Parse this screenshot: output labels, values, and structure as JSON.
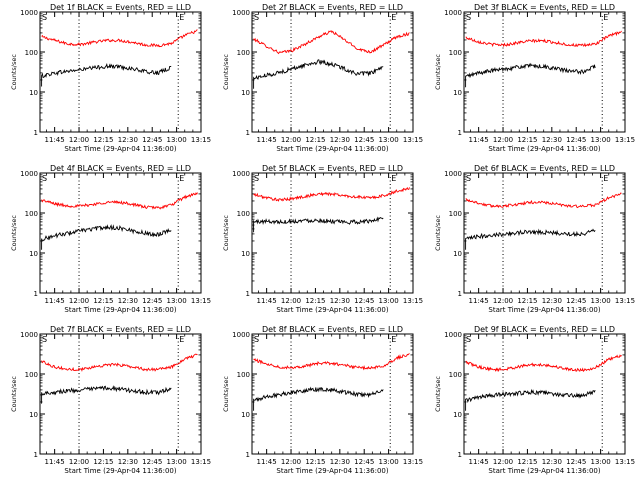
{
  "chart_data": [
    {
      "type": "line",
      "title": "Det 1f BLACK = Events, RED = LLD",
      "ylabel": "Counts/sec",
      "xlabel": "Start Time (29-Apr-04 11:36:00)",
      "marker_left": "S",
      "marker_right": "E",
      "x_ticks": [
        "11:45",
        "12:00",
        "12:15",
        "12:30",
        "12:45",
        "13:00",
        "13:15"
      ],
      "y_ticks": [
        "1",
        "10",
        "100",
        "1000"
      ],
      "ylim": [
        1,
        1000
      ],
      "series": [
        {
          "color": "#ff0000",
          "x_minutes": [
            0,
            8,
            16,
            24,
            32,
            40,
            48,
            56,
            64,
            72,
            80,
            88,
            96
          ],
          "values": [
            240,
            195,
            160,
            155,
            175,
            195,
            195,
            175,
            150,
            145,
            165,
            260,
            340
          ]
        },
        {
          "color": "#000000",
          "x_minutes": [
            0,
            8,
            16,
            24,
            32,
            40,
            48,
            56,
            64,
            72,
            80
          ],
          "values": [
            25,
            30,
            33,
            36,
            40,
            44,
            43,
            38,
            32,
            30,
            42
          ]
        }
      ]
    },
    {
      "type": "line",
      "title": "Det 2f BLACK = Events, RED = LLD",
      "ylabel": "Counts/sec",
      "xlabel": "Start Time (29-Apr-04 11:36:00)",
      "marker_left": "S",
      "marker_right": "E",
      "x_ticks": [
        "11:45",
        "12:00",
        "12:15",
        "12:30",
        "12:45",
        "13:00",
        "13:15"
      ],
      "y_ticks": [
        "1",
        "10",
        "100",
        "1000"
      ],
      "ylim": [
        1,
        1000
      ],
      "series": [
        {
          "color": "#ff0000",
          "x_minutes": [
            0,
            8,
            16,
            24,
            32,
            40,
            48,
            56,
            64,
            72,
            80,
            88,
            96
          ],
          "values": [
            210,
            140,
            95,
            110,
            160,
            240,
            330,
            200,
            120,
            100,
            150,
            240,
            290
          ]
        },
        {
          "color": "#000000",
          "x_minutes": [
            0,
            8,
            16,
            24,
            32,
            40,
            48,
            56,
            64,
            72,
            80
          ],
          "values": [
            22,
            26,
            31,
            38,
            48,
            57,
            50,
            38,
            28,
            30,
            40
          ]
        }
      ]
    },
    {
      "type": "line",
      "title": "Det 3f BLACK = Events, RED = LLD",
      "ylabel": "Counts/sec",
      "xlabel": "Start Time (29-Apr-04 11:36:00)",
      "marker_left": "S",
      "marker_right": "E",
      "x_ticks": [
        "11:45",
        "12:00",
        "12:15",
        "12:30",
        "12:45",
        "13:00",
        "13:15"
      ],
      "y_ticks": [
        "1",
        "10",
        "100",
        "1000"
      ],
      "ylim": [
        1,
        1000
      ],
      "series": [
        {
          "color": "#ff0000",
          "x_minutes": [
            0,
            8,
            16,
            24,
            32,
            40,
            48,
            56,
            64,
            72,
            80,
            88,
            96
          ],
          "values": [
            230,
            180,
            155,
            150,
            170,
            190,
            190,
            170,
            150,
            145,
            160,
            250,
            320
          ]
        },
        {
          "color": "#000000",
          "x_minutes": [
            0,
            8,
            16,
            24,
            32,
            40,
            48,
            56,
            64,
            72,
            80
          ],
          "values": [
            24,
            30,
            34,
            38,
            42,
            45,
            43,
            38,
            33,
            32,
            45
          ]
        }
      ]
    },
    {
      "type": "line",
      "title": "Det 4f BLACK = Events, RED = LLD",
      "ylabel": "Counts/sec",
      "xlabel": "Start Time (29-Apr-04 11:36:00)",
      "marker_left": "S",
      "marker_right": "E",
      "x_ticks": [
        "11:45",
        "12:00",
        "12:15",
        "12:30",
        "12:45",
        "13:00",
        "13:15"
      ],
      "y_ticks": [
        "1",
        "10",
        "100",
        "1000"
      ],
      "ylim": [
        1,
        1000
      ],
      "series": [
        {
          "color": "#ff0000",
          "x_minutes": [
            0,
            8,
            16,
            24,
            32,
            40,
            48,
            56,
            64,
            72,
            80,
            88,
            96
          ],
          "values": [
            210,
            170,
            150,
            150,
            165,
            185,
            185,
            165,
            140,
            135,
            160,
            250,
            310
          ]
        },
        {
          "color": "#000000",
          "x_minutes": [
            0,
            8,
            16,
            24,
            32,
            40,
            48,
            56,
            64,
            72,
            80
          ],
          "values": [
            22,
            27,
            31,
            36,
            40,
            44,
            42,
            36,
            31,
            29,
            40
          ]
        }
      ]
    },
    {
      "type": "line",
      "title": "Det 5f BLACK = Events, RED = LLD",
      "ylabel": "Counts/sec",
      "xlabel": "Start Time (29-Apr-04 11:36:00)",
      "marker_left": "S",
      "marker_right": "E",
      "x_ticks": [
        "11:45",
        "12:00",
        "12:15",
        "12:30",
        "12:45",
        "13:00",
        "13:15"
      ],
      "y_ticks": [
        "1",
        "10",
        "100",
        "1000"
      ],
      "ylim": [
        1,
        1000
      ],
      "series": [
        {
          "color": "#ff0000",
          "x_minutes": [
            0,
            8,
            16,
            24,
            32,
            40,
            48,
            56,
            64,
            72,
            80,
            88,
            96
          ],
          "values": [
            290,
            240,
            210,
            230,
            260,
            300,
            300,
            270,
            250,
            240,
            270,
            350,
            420
          ]
        },
        {
          "color": "#000000",
          "x_minutes": [
            0,
            8,
            16,
            24,
            32,
            40,
            48,
            56,
            64,
            72,
            80
          ],
          "values": [
            60,
            62,
            60,
            62,
            65,
            66,
            62,
            58,
            60,
            62,
            80
          ]
        }
      ]
    },
    {
      "type": "line",
      "title": "Det 6f BLACK = Events, RED = LLD",
      "ylabel": "Counts/sec",
      "xlabel": "Start Time (29-Apr-04 11:36:00)",
      "marker_left": "S",
      "marker_right": "E",
      "x_ticks": [
        "11:45",
        "12:00",
        "12:15",
        "12:30",
        "12:45",
        "13:00",
        "13:15"
      ],
      "y_ticks": [
        "1",
        "10",
        "100",
        "1000"
      ],
      "ylim": [
        1,
        1000
      ],
      "series": [
        {
          "color": "#ff0000",
          "x_minutes": [
            0,
            8,
            16,
            24,
            32,
            40,
            48,
            56,
            64,
            72,
            80,
            88,
            96
          ],
          "values": [
            220,
            175,
            150,
            150,
            165,
            185,
            185,
            165,
            150,
            145,
            160,
            240,
            300
          ]
        },
        {
          "color": "#000000",
          "x_minutes": [
            0,
            8,
            16,
            24,
            32,
            40,
            48,
            56,
            64,
            72,
            80
          ],
          "values": [
            22,
            26,
            28,
            30,
            32,
            34,
            33,
            31,
            30,
            30,
            38
          ]
        }
      ]
    },
    {
      "type": "line",
      "title": "Det 7f BLACK = Events, RED = LLD",
      "ylabel": "Counts/sec",
      "xlabel": "Start Time (29-Apr-04 11:36:00)",
      "marker_left": "S",
      "marker_right": "E",
      "x_ticks": [
        "11:45",
        "12:00",
        "12:15",
        "12:30",
        "12:45",
        "13:00",
        "13:15"
      ],
      "y_ticks": [
        "1",
        "10",
        "100",
        "1000"
      ],
      "ylim": [
        1,
        1000
      ],
      "series": [
        {
          "color": "#ff0000",
          "x_minutes": [
            0,
            8,
            16,
            24,
            32,
            40,
            48,
            56,
            64,
            72,
            80,
            88,
            96
          ],
          "values": [
            210,
            150,
            130,
            130,
            150,
            170,
            170,
            150,
            130,
            130,
            150,
            240,
            300
          ]
        },
        {
          "color": "#000000",
          "x_minutes": [
            0,
            8,
            16,
            24,
            32,
            40,
            48,
            56,
            64,
            72,
            80
          ],
          "values": [
            33,
            35,
            38,
            40,
            42,
            45,
            42,
            38,
            35,
            34,
            45
          ]
        }
      ]
    },
    {
      "type": "line",
      "title": "Det 8f BLACK = Events, RED = LLD",
      "ylabel": "Counts/sec",
      "xlabel": "Start Time (29-Apr-04 11:36:00)",
      "marker_left": "S",
      "marker_right": "E",
      "x_ticks": [
        "11:45",
        "12:00",
        "12:15",
        "12:30",
        "12:45",
        "13:00",
        "13:15"
      ],
      "y_ticks": [
        "1",
        "10",
        "100",
        "1000"
      ],
      "ylim": [
        1,
        1000
      ],
      "series": [
        {
          "color": "#ff0000",
          "x_minutes": [
            0,
            8,
            16,
            24,
            32,
            40,
            48,
            56,
            64,
            72,
            80,
            88,
            96
          ],
          "values": [
            230,
            180,
            150,
            145,
            160,
            185,
            185,
            165,
            145,
            140,
            160,
            250,
            320
          ]
        },
        {
          "color": "#000000",
          "x_minutes": [
            0,
            8,
            16,
            24,
            32,
            40,
            48,
            56,
            64,
            72,
            80
          ],
          "values": [
            22,
            27,
            31,
            35,
            39,
            42,
            40,
            35,
            31,
            30,
            40
          ]
        }
      ]
    },
    {
      "type": "line",
      "title": "Det 9f BLACK = Events, RED = LLD",
      "ylabel": "Counts/sec",
      "xlabel": "Start Time (29-Apr-04 11:36:00)",
      "marker_left": "S",
      "marker_right": "E",
      "x_ticks": [
        "11:45",
        "12:00",
        "12:15",
        "12:30",
        "12:45",
        "13:00",
        "13:15"
      ],
      "y_ticks": [
        "1",
        "10",
        "100",
        "1000"
      ],
      "ylim": [
        1,
        1000
      ],
      "series": [
        {
          "color": "#ff0000",
          "x_minutes": [
            0,
            8,
            16,
            24,
            32,
            40,
            48,
            56,
            64,
            72,
            80,
            88,
            96
          ],
          "values": [
            200,
            150,
            130,
            130,
            150,
            170,
            170,
            150,
            130,
            125,
            145,
            230,
            290
          ]
        },
        {
          "color": "#000000",
          "x_minutes": [
            0,
            8,
            16,
            24,
            32,
            40,
            48,
            56,
            64,
            72,
            80
          ],
          "values": [
            22,
            26,
            29,
            31,
            33,
            35,
            34,
            31,
            29,
            29,
            37
          ]
        }
      ]
    }
  ]
}
